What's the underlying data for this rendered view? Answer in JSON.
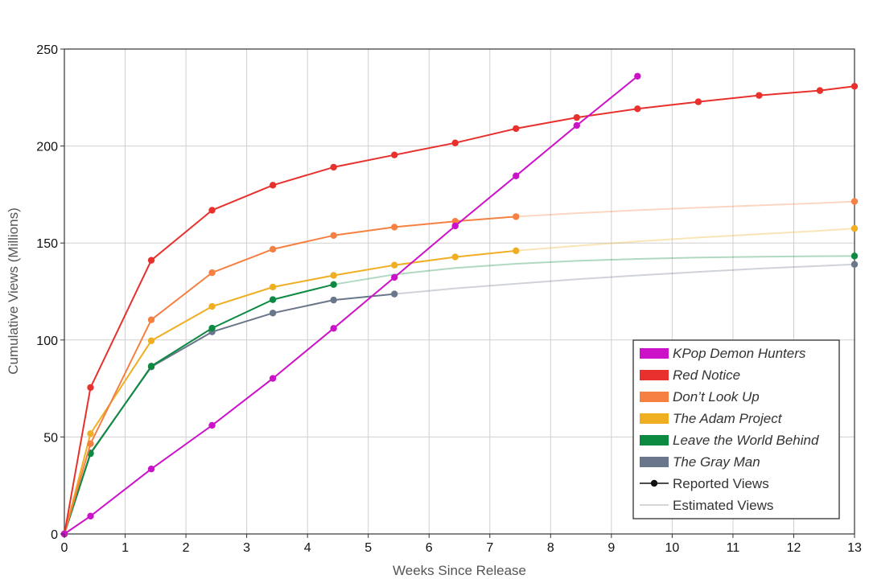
{
  "chart_data": {
    "type": "line",
    "title": "",
    "xlabel": "Weeks Since Release",
    "ylabel": "Cumulative Views (Millions)",
    "xlim": [
      0,
      13
    ],
    "ylim": [
      0,
      250
    ],
    "x_ticks": [
      "0",
      "1",
      "2",
      "3",
      "4",
      "5",
      "6",
      "7",
      "8",
      "9",
      "10",
      "11",
      "12",
      "13"
    ],
    "y_ticks": [
      "0",
      "50",
      "100",
      "150",
      "200",
      "250"
    ],
    "grid": true,
    "legend_position": "bottom-right",
    "series": [
      {
        "name": "KPop Demon Hunters",
        "color": "#cc12c8",
        "reported": [
          [
            0,
            0
          ],
          [
            0.43,
            9.2
          ],
          [
            1.43,
            33.5
          ],
          [
            2.43,
            56
          ],
          [
            3.43,
            80.2
          ],
          [
            4.43,
            106
          ],
          [
            5.43,
            132.3
          ],
          [
            6.43,
            158.8
          ],
          [
            7.43,
            184.6
          ],
          [
            8.43,
            210.6
          ],
          [
            9.43,
            236
          ]
        ],
        "estimated": []
      },
      {
        "name": "Red Notice",
        "color": "#e8302c",
        "reported": [
          [
            0,
            0
          ],
          [
            0.43,
            75.5
          ],
          [
            1.43,
            141.1
          ],
          [
            2.43,
            166.9
          ],
          [
            3.43,
            179.8
          ],
          [
            4.43,
            189.1
          ],
          [
            5.43,
            195.4
          ],
          [
            6.43,
            201.6
          ],
          [
            7.43,
            209
          ],
          [
            8.43,
            214.7
          ],
          [
            9.43,
            219.2
          ],
          [
            10.43,
            222.8
          ],
          [
            11.43,
            226.1
          ],
          [
            12.43,
            228.6
          ],
          [
            13,
            230.8
          ]
        ],
        "estimated": []
      },
      {
        "name": "Don’t Look Up",
        "color": "#f58042",
        "reported": [
          [
            0,
            0
          ],
          [
            0.43,
            46.5
          ],
          [
            1.43,
            110.4
          ],
          [
            2.43,
            134.7
          ],
          [
            3.43,
            146.8
          ],
          [
            4.43,
            153.9
          ],
          [
            5.43,
            158.2
          ],
          [
            6.43,
            161.2
          ],
          [
            7.43,
            163.6
          ]
        ],
        "estimated": [
          [
            7.43,
            163.6
          ],
          [
            8.43,
            165.4
          ],
          [
            9.43,
            166.9
          ],
          [
            10.43,
            168.2
          ],
          [
            11.43,
            169.4
          ],
          [
            12.43,
            170.6
          ],
          [
            13,
            171.4
          ]
        ]
      },
      {
        "name": "The Adam Project",
        "color": "#f0ae23",
        "reported": [
          [
            0,
            0
          ],
          [
            0.43,
            51.7
          ],
          [
            1.43,
            99.6
          ],
          [
            2.43,
            117.3
          ],
          [
            3.43,
            127.3
          ],
          [
            4.43,
            133.3
          ],
          [
            5.43,
            138.6
          ],
          [
            6.43,
            142.8
          ],
          [
            7.43,
            146
          ]
        ],
        "estimated": [
          [
            7.43,
            146
          ],
          [
            8.43,
            148.5
          ],
          [
            9.43,
            150.8
          ],
          [
            10.43,
            152.8
          ],
          [
            11.43,
            154.6
          ],
          [
            12.43,
            156.3
          ],
          [
            13,
            157.5
          ]
        ]
      },
      {
        "name": "Leave the World Behind",
        "color": "#0d8a42",
        "reported": [
          [
            0,
            0
          ],
          [
            0.43,
            41.4
          ],
          [
            1.43,
            86.5
          ],
          [
            2.43,
            106.1
          ],
          [
            3.43,
            120.8
          ],
          [
            4.43,
            128.6
          ]
        ],
        "estimated": [
          [
            4.43,
            128.6
          ],
          [
            5.43,
            133.8
          ],
          [
            6.43,
            137.1
          ],
          [
            7.43,
            139.3
          ],
          [
            8.43,
            140.8
          ],
          [
            9.43,
            141.8
          ],
          [
            10.43,
            142.5
          ],
          [
            11.43,
            142.9
          ],
          [
            12.43,
            143.2
          ],
          [
            13,
            143.3
          ]
        ]
      },
      {
        "name": "The Gray Man",
        "color": "#6a7689",
        "reported": [
          [
            0,
            0
          ],
          [
            0.43,
            41.8
          ],
          [
            1.43,
            86.1
          ],
          [
            2.43,
            104.2
          ],
          [
            3.43,
            113.9
          ],
          [
            4.43,
            120.6
          ],
          [
            5.43,
            123.7
          ]
        ],
        "estimated": [
          [
            5.43,
            123.7
          ],
          [
            6.43,
            126.6
          ],
          [
            7.43,
            129
          ],
          [
            8.43,
            131.3
          ],
          [
            9.43,
            133.3
          ],
          [
            10.43,
            135.1
          ],
          [
            11.43,
            136.8
          ],
          [
            12.43,
            138.2
          ],
          [
            13,
            139
          ]
        ]
      }
    ],
    "legend": {
      "items": [
        {
          "label": "KPop Demon Hunters",
          "color": "#cc12c8",
          "kind": "swatch"
        },
        {
          "label": "Red Notice",
          "color": "#e8302c",
          "kind": "swatch"
        },
        {
          "label": "Don’t Look Up",
          "color": "#f58042",
          "kind": "swatch"
        },
        {
          "label": "The Adam Project",
          "color": "#f0ae23",
          "kind": "swatch"
        },
        {
          "label": "Leave the World Behind",
          "color": "#0d8a42",
          "kind": "swatch"
        },
        {
          "label": "The Gray Man",
          "color": "#6a7689",
          "kind": "swatch"
        },
        {
          "label": "Reported Views",
          "color": "#111111",
          "kind": "line-dot"
        },
        {
          "label": "Estimated Views",
          "color": "#c8c8c8",
          "kind": "line"
        }
      ]
    }
  }
}
